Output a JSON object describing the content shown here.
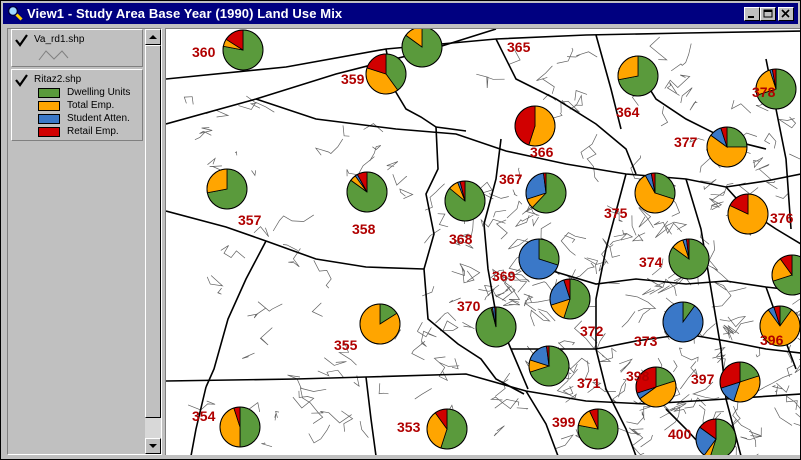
{
  "window": {
    "title": "View1 - Study Area Base Year (1990) Land Use Mix",
    "icon": "magnifier-icon"
  },
  "toc": {
    "themes": [
      {
        "name": "Va_rd1.shp",
        "checked": true
      },
      {
        "name": "Ritaz2.shp",
        "checked": true,
        "legend": [
          {
            "label": "Dwelling Units",
            "color": "#5a9a3c"
          },
          {
            "label": "Total Emp.",
            "color": "#ffa500"
          },
          {
            "label": "Student Atten.",
            "color": "#3a78c8"
          },
          {
            "label": "Retail Emp.",
            "color": "#d10000"
          }
        ]
      }
    ]
  },
  "map": {
    "zones": [
      {
        "id": "360",
        "mix": [
          0.78,
          0.06,
          0,
          0.16
        ]
      },
      {
        "id": "359",
        "mix": [
          0.4,
          0.4,
          0,
          0.2
        ]
      },
      {
        "id": "365",
        "mix": [
          0.85,
          0.15,
          0,
          0
        ]
      },
      {
        "id": "364",
        "mix": [
          0.72,
          0.28,
          0,
          0
        ]
      },
      {
        "id": "366",
        "mix": [
          0,
          0.55,
          0,
          0.45
        ]
      },
      {
        "id": "378",
        "mix": [
          0.7,
          0.25,
          0.02,
          0.03
        ]
      },
      {
        "id": "377",
        "mix": [
          0.25,
          0.6,
          0.1,
          0.05
        ]
      },
      {
        "id": "367",
        "mix": [
          0.62,
          0.08,
          0.28,
          0.02
        ]
      },
      {
        "id": "375",
        "mix": [
          0.3,
          0.62,
          0.05,
          0.03
        ]
      },
      {
        "id": "376",
        "mix": [
          0,
          0.82,
          0,
          0.18
        ]
      },
      {
        "id": "357",
        "mix": [
          0.72,
          0.28,
          0,
          0
        ]
      },
      {
        "id": "358",
        "mix": [
          0.85,
          0.05,
          0.02,
          0.08
        ]
      },
      {
        "id": "368",
        "mix": [
          0.86,
          0.08,
          0.02,
          0.04
        ]
      },
      {
        "id": "369",
        "mix": [
          0.3,
          0,
          0.7,
          0
        ]
      },
      {
        "id": "374",
        "mix": [
          0.85,
          0.1,
          0.03,
          0.02
        ]
      },
      {
        "id": "370",
        "mix": [
          0.96,
          0.01,
          0.02,
          0.01
        ]
      },
      {
        "id": "372",
        "mix": [
          0.55,
          0.15,
          0.25,
          0.05
        ]
      },
      {
        "id": "373",
        "mix": [
          0.1,
          0,
          0.9,
          0
        ]
      },
      {
        "id": "396",
        "mix": [
          0.1,
          0.8,
          0.05,
          0.05
        ]
      },
      {
        "id": "355",
        "mix": [
          0.16,
          0.84,
          0,
          0
        ]
      },
      {
        "id": "371",
        "mix": [
          0.7,
          0.1,
          0.18,
          0.02
        ]
      },
      {
        "id": "398",
        "mix": [
          0.2,
          0.45,
          0.05,
          0.3
        ]
      },
      {
        "id": "397",
        "mix": [
          0.2,
          0.35,
          0.15,
          0.3
        ]
      },
      {
        "id": "354",
        "mix": [
          0.5,
          0.45,
          0,
          0.05
        ]
      },
      {
        "id": "353",
        "mix": [
          0.55,
          0.35,
          0,
          0.1
        ]
      },
      {
        "id": "399",
        "mix": [
          0.78,
          0.15,
          0,
          0.07
        ]
      },
      {
        "id": "400",
        "mix": [
          0.55,
          0.05,
          0.25,
          0.15
        ]
      },
      {
        "id": "",
        "mix": [
          0.7,
          0.2,
          0,
          0.1
        ]
      }
    ]
  }
}
